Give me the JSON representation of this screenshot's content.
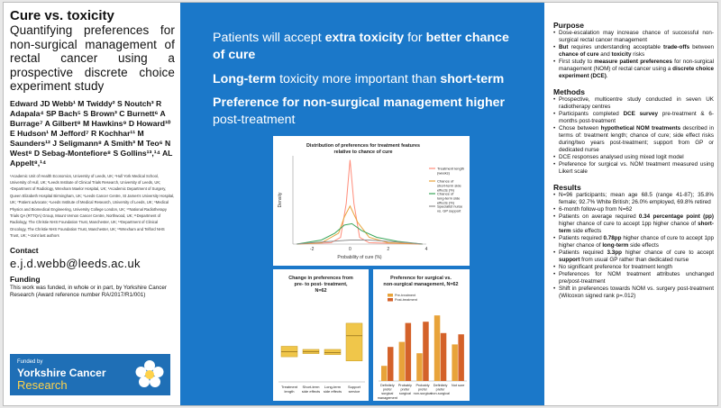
{
  "title": {
    "main": "Cure vs. toxicity",
    "sub": "Quantifying preferences for non-surgical management of rectal cancer using a prospective discrete choice experiment study"
  },
  "authors": "Edward JD Webb¹ M Twiddy² S Noutch³ R Adapala⁴ SP Bach⁵ S Brown³ C Burnett⁶ A Burrage⁷ A Gilbert⁸ M Hawkins⁹ D Howard¹⁰ E Hudson¹ M Jefford⁷ R Kochhar¹¹ M Saunders¹² J Seligmann⁸ A Smith³ M Teo⁶ N West⁸ D Sebag-Montefiore⁸ S Gollins¹³,¹⁴ AL Appelt⁸,¹⁴",
  "affiliations": "¹Academic Unit of Health Economics, University of Leeds, UK; ²Hull York Medical School, University of Hull, UK; ³Leeds Institute of Clinical Trials Research, University of Leeds, UK; ⁴Department of Radiology, Wrexham Maelor Hospital, UK; ⁵Academic Department of Surgery, Queen Elizabeth Hospital Birmingham, UK; ⁶Leeds Cancer Centre, St James's University Hospital, UK; ⁷Patient advocate; ⁸Leeds Institute of Medical Research, University of Leeds, UK; ⁹Medical Physics and Biomedical Engineering, University College London, UK; ¹⁰National Radiotherapy Trials QA (RTTQA) Group, Mount Vernon Cancer Centre, Northwood, UK; ¹¹Department of Radiology, The Christie NHS Foundation Trust, Manchester, UK; ¹²Department of Clinical Oncology, The Christie NHS Foundation Trust, Manchester, UK; ¹³Wrexham and Telford NHS Trust, UK; ¹⁴Joint last authors",
  "contact": {
    "heading": "Contact",
    "email": "e.j.d.webb@leeds.ac.uk"
  },
  "funding": {
    "heading": "Funding",
    "text": "This work was funded, in whole or in part, by Yorkshire Cancer Research (Award reference number RA/2017/R1/001)"
  },
  "logo": {
    "funded_by": "Funded by",
    "name_line1": "Yorkshire Cancer",
    "name_line2": "Research"
  },
  "headlines": [
    {
      "parts": [
        {
          "t": "Patients will accept ",
          "b": false
        },
        {
          "t": "extra toxicity",
          "b": true
        },
        {
          "t": " for ",
          "b": false
        },
        {
          "t": "better chance of cure",
          "b": true
        }
      ]
    },
    {
      "parts": [
        {
          "t": "Long-term",
          "b": true
        },
        {
          "t": " toxicity more important than ",
          "b": false
        },
        {
          "t": "short-term",
          "b": true
        }
      ]
    },
    {
      "parts": [
        {
          "t": "Preference for non-surgical management higher",
          "b": true
        },
        {
          "t": " post-treatment",
          "b": false
        }
      ]
    }
  ],
  "sections": [
    {
      "heading": "Purpose",
      "items": [
        [
          {
            "t": "Dose-escalation may increase chance of successful non-surgical rectal cancer management",
            "b": false
          }
        ],
        [
          {
            "t": "But",
            "b": true
          },
          {
            "t": " requires understanding acceptable ",
            "b": false
          },
          {
            "t": "trade-offs",
            "b": true
          },
          {
            "t": " between ",
            "b": false
          },
          {
            "t": "chance of cure",
            "b": true
          },
          {
            "t": " and ",
            "b": false
          },
          {
            "t": "toxicity",
            "b": true
          },
          {
            "t": " risks",
            "b": false
          }
        ],
        [
          {
            "t": "First study to ",
            "b": false
          },
          {
            "t": "measure patient preferences",
            "b": true
          },
          {
            "t": " for non-surgical management (NOM) of rectal cancer using a ",
            "b": false
          },
          {
            "t": "discrete choice experiment (DCE)",
            "b": true
          },
          {
            "t": ".",
            "b": false
          }
        ]
      ]
    },
    {
      "heading": "Methods",
      "items": [
        [
          {
            "t": "Prospective, multicentre study conducted in seven UK radiotherapy centres",
            "b": false
          }
        ],
        [
          {
            "t": "Participants completed ",
            "b": false
          },
          {
            "t": "DCE survey",
            "b": true
          },
          {
            "t": " pre-treatment & 6-months post-treatment",
            "b": false
          }
        ],
        [
          {
            "t": "Chose between ",
            "b": false
          },
          {
            "t": "hypothetical NOM treatments",
            "b": true
          },
          {
            "t": " described in terms of: treatment length; chance of cure; side effect risks during/two years post-treatment; support from GP or dedicated nurse",
            "b": false
          }
        ],
        [
          {
            "t": "DCE responses analysed using mixed logit model",
            "b": false
          }
        ],
        [
          {
            "t": "Preference for surgical vs. NOM treatment measured using Likert scale",
            "b": false
          }
        ]
      ]
    },
    {
      "heading": "Results",
      "items": [
        [
          {
            "t": "N=96 participants; mean age 68.5 (range 41-87); 35.8% female; 92.7% White British; 26.0% employed, 69.8% retired",
            "b": false
          }
        ],
        [
          {
            "t": "6-month follow-up from N=62",
            "b": false
          }
        ],
        [
          {
            "t": "Patients on average required ",
            "b": false
          },
          {
            "t": "0.34 percentage point (pp)",
            "b": true
          },
          {
            "t": " higher chance of cure to accept 1pp higher chance of ",
            "b": false
          },
          {
            "t": "short-term",
            "b": true
          },
          {
            "t": " side effects",
            "b": false
          }
        ],
        [
          {
            "t": "Patients required ",
            "b": false
          },
          {
            "t": "0.78pp",
            "b": true
          },
          {
            "t": " higher chance of cure to accept 1pp higher chance of ",
            "b": false
          },
          {
            "t": "long-term",
            "b": true
          },
          {
            "t": " side effects",
            "b": false
          }
        ],
        [
          {
            "t": "Patients required ",
            "b": false
          },
          {
            "t": "3.3pp",
            "b": true
          },
          {
            "t": " higher chance of cure to accept ",
            "b": false
          },
          {
            "t": "support",
            "b": true
          },
          {
            "t": " from usual GP rather than dedicated nurse",
            "b": false
          }
        ],
        [
          {
            "t": "No significant preference for treatment length",
            "b": false
          }
        ],
        [
          {
            "t": "Preferences for NOM treatment attributes unchanged pre/post-treatment",
            "b": false
          }
        ],
        [
          {
            "t": "Shift in preferences towards NOM vs. surgery post-treatment (Wilcoxon signed rank p=.012)",
            "b": false
          }
        ]
      ]
    }
  ],
  "chart_data": [
    {
      "type": "line",
      "title": "Distribution of preferences for treatment features relative to chance of cure",
      "xlabel": "Probability of cure (%)",
      "ylabel": "Density",
      "xlim": [
        -3,
        4
      ],
      "xticks": [
        "-2",
        "0",
        "2",
        "4"
      ],
      "legend": "right",
      "series": [
        {
          "name": "Treatment length (weeks)",
          "color": "#ff8c7a",
          "x": [
            -2.8,
            -1,
            -0.5,
            -0.2,
            0,
            0.2,
            0.5,
            1,
            3.8
          ],
          "y": [
            0,
            0.01,
            0.05,
            0.3,
            0.62,
            0.3,
            0.05,
            0.01,
            0
          ]
        },
        {
          "name": "Chance of short-term side effects (%)",
          "color": "#e8a33a",
          "x": [
            -2.8,
            -1.5,
            -0.6,
            -0.3,
            0,
            0.4,
            1,
            2,
            3.8
          ],
          "y": [
            0,
            0.01,
            0.08,
            0.2,
            0.28,
            0.16,
            0.05,
            0.01,
            0
          ]
        },
        {
          "name": "Chance of long-term side effects (%)",
          "color": "#3aa65a",
          "x": [
            -2.8,
            -1.5,
            -0.8,
            -0.3,
            0.1,
            0.6,
            1.4,
            2.5,
            3.8
          ],
          "y": [
            0,
            0.03,
            0.08,
            0.14,
            0.15,
            0.1,
            0.05,
            0.02,
            0
          ]
        },
        {
          "name": "Specialist nurse vs. GP support",
          "color": "#8f8f8f",
          "x": [
            -2.8,
            -2,
            -1,
            0,
            1,
            2,
            3,
            3.8
          ],
          "y": [
            0,
            0.01,
            0.02,
            0.03,
            0.03,
            0.02,
            0.01,
            0
          ]
        }
      ]
    },
    {
      "type": "box",
      "title": "Change in preferences from pre- to post- treatment, N=62",
      "categories": [
        "Treatment length",
        "Short-term side effects",
        "Long-term side effects",
        "Support service"
      ],
      "boxes": [
        {
          "q1": -0.3,
          "median": -0.05,
          "q3": 0.2
        },
        {
          "q1": -0.15,
          "median": -0.05,
          "q3": 0.05
        },
        {
          "q1": -0.2,
          "median": -0.1,
          "q3": 0.05
        },
        {
          "q1": -0.5,
          "median": 0.7,
          "q3": 1.3
        }
      ]
    },
    {
      "type": "bar",
      "title": "Preference for surgical vs. non-surgical management, N=62",
      "categories": [
        "Definitely prefer surgical management",
        "Probably prefer surgical",
        "Probably prefer non-surgical",
        "Definitely prefer non-surgical",
        "Not sure"
      ],
      "series": [
        {
          "name": "Pre-treatment",
          "color": "#e8a33a",
          "values": [
            0.12,
            0.31,
            0.22,
            0.52,
            0.29
          ]
        },
        {
          "name": "Post-treatment",
          "color": "#d4622a",
          "values": [
            0.27,
            0.46,
            0.47,
            0.38,
            0.37
          ]
        }
      ],
      "ylim": [
        0,
        0.6
      ]
    }
  ]
}
